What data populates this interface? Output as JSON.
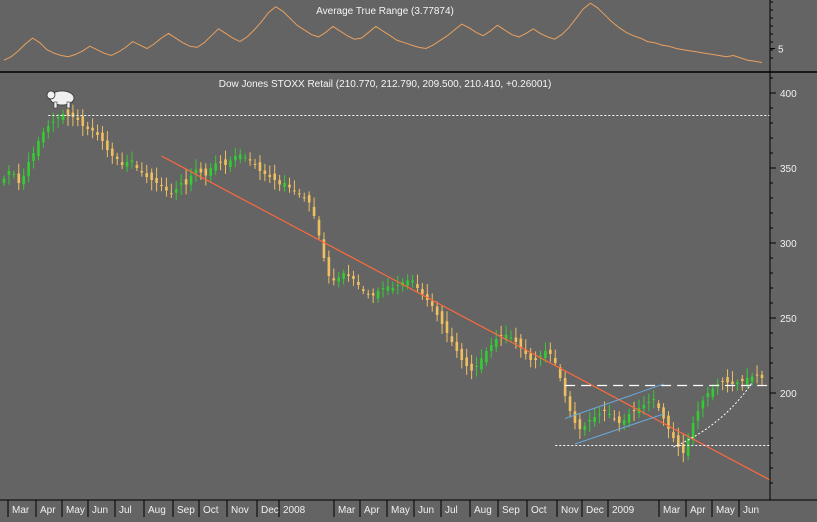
{
  "chart_data": [
    {
      "type": "line",
      "title": "Average True Range (3.77874)",
      "y_ticks": [
        "5"
      ],
      "series": [
        {
          "color": "#e8a060",
          "values": [
            4.0,
            4.3,
            4.8,
            5.4,
            5.9,
            5.5,
            4.9,
            4.6,
            4.4,
            4.3,
            4.5,
            4.8,
            5.2,
            4.9,
            4.6,
            4.4,
            4.7,
            5.1,
            5.6,
            5.3,
            5.0,
            5.4,
            5.9,
            6.3,
            5.9,
            5.5,
            5.2,
            5.1,
            5.5,
            6.1,
            6.7,
            6.3,
            5.9,
            5.6,
            6.0,
            6.6,
            7.3,
            8.1,
            8.6,
            8.2,
            7.6,
            7.0,
            6.6,
            6.2,
            6.0,
            6.4,
            6.9,
            6.5,
            6.1,
            5.8,
            5.9,
            6.4,
            6.9,
            6.5,
            6.1,
            5.7,
            5.5,
            5.3,
            5.1,
            5.0,
            5.3,
            5.7,
            6.1,
            6.6,
            7.1,
            6.8,
            6.4,
            6.1,
            6.5,
            7.0,
            6.6,
            6.2,
            6.0,
            6.3,
            6.7,
            6.3,
            6.0,
            5.8,
            6.2,
            6.8,
            7.6,
            8.4,
            8.9,
            8.5,
            7.9,
            7.3,
            6.8,
            6.4,
            6.1,
            5.9,
            5.6,
            5.5,
            5.3,
            5.2,
            5.0,
            4.9,
            4.8,
            4.7,
            4.6,
            4.5,
            4.4,
            4.3,
            4.4,
            4.2,
            4.0,
            3.9,
            3.8
          ]
        }
      ]
    },
    {
      "type": "candlestick",
      "title": "Dow Jones STOXX Retail (210.770, 212.790, 209.500, 210.410, +0.26001)",
      "ylim": [
        130,
        410
      ],
      "y_ticks": [
        200,
        250,
        300,
        350,
        400
      ],
      "x_labels": [
        "Mar",
        "Apr",
        "May",
        "Jun",
        "Jul",
        "Aug",
        "Sep",
        "Oct",
        "Nov",
        "Dec",
        "2008",
        "Mar",
        "Apr",
        "May",
        "Jun",
        "Jul",
        "Aug",
        "Sep",
        "Oct",
        "Nov",
        "Dec",
        "2009",
        "Mar",
        "Apr",
        "May",
        "Jun"
      ],
      "closes": [
        343,
        348,
        346,
        340,
        345,
        354,
        360,
        368,
        374,
        378,
        381,
        384,
        386,
        385,
        384,
        382,
        378,
        376,
        375,
        372,
        368,
        362,
        358,
        356,
        352,
        354,
        355,
        350,
        347,
        344,
        342,
        340,
        338,
        335,
        333,
        336,
        340,
        339,
        345,
        349,
        347,
        345,
        350,
        353,
        354,
        352,
        355,
        358,
        359,
        357,
        355,
        352,
        348,
        346,
        344,
        342,
        339,
        340,
        337,
        335,
        333,
        330,
        327,
        318,
        305,
        290,
        278,
        275,
        277,
        280,
        278,
        276,
        272,
        268,
        266,
        265,
        268,
        270,
        271,
        270,
        272,
        274,
        275,
        275,
        270,
        266,
        262,
        258,
        252,
        246,
        240,
        234,
        228,
        222,
        218,
        215,
        218,
        223,
        228,
        232,
        236,
        238,
        239,
        237,
        234,
        230,
        226,
        222,
        222,
        225,
        228,
        226,
        220,
        210,
        198,
        188,
        180,
        176,
        178,
        182,
        184,
        186,
        188,
        186,
        183,
        180,
        182,
        186,
        188,
        190,
        192,
        194,
        196,
        190,
        183,
        176,
        170,
        164,
        160,
        170,
        180,
        188,
        195,
        200,
        203,
        206,
        208,
        207,
        206,
        207,
        208,
        210,
        211,
        212,
        210
      ],
      "up_color": "#33cc33",
      "down_color": "#f0c060",
      "annotations": {
        "resistance_level": 385,
        "support_level": 165,
        "breakout_level": 205,
        "trendline_color": "#ff6a3c",
        "channel_color": "#6aa8d8"
      }
    }
  ]
}
